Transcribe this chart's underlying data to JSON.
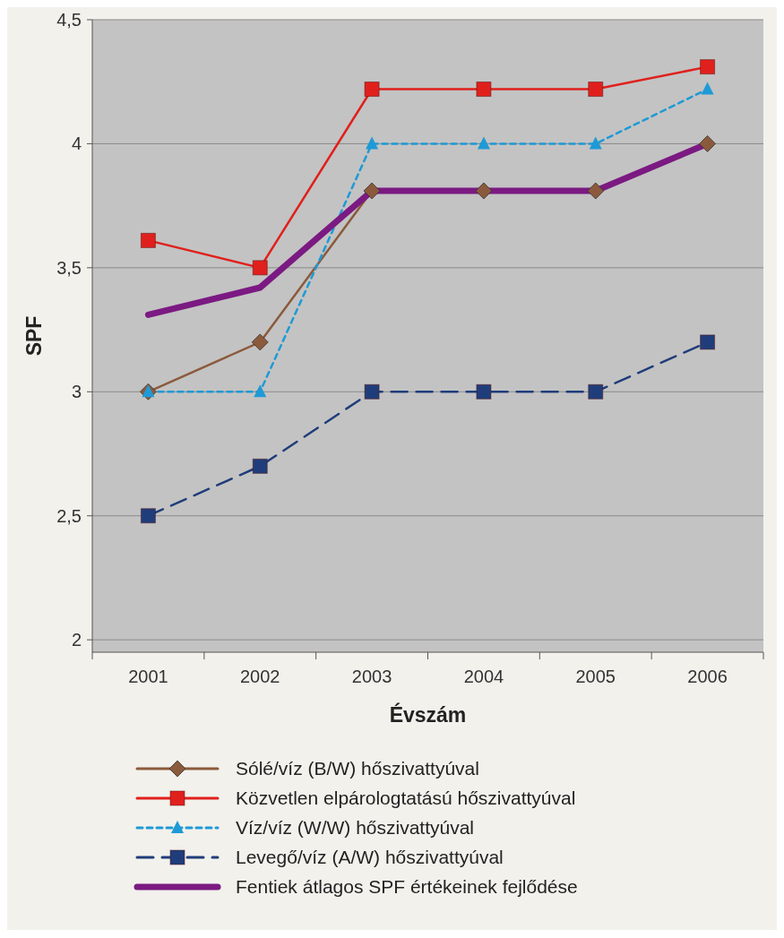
{
  "chart_data": {
    "type": "line",
    "xlabel": "Évszám",
    "ylabel": "SPF",
    "categories": [
      "2001",
      "2002",
      "2003",
      "2004",
      "2005",
      "2006"
    ],
    "ylim": [
      1.95,
      4.5
    ],
    "yticks": [
      {
        "value": 2,
        "label": "2"
      },
      {
        "value": 2.5,
        "label": "2,5"
      },
      {
        "value": 3,
        "label": "3"
      },
      {
        "value": 3.5,
        "label": "3,5"
      },
      {
        "value": 4,
        "label": "4"
      },
      {
        "value": 4.5,
        "label": "4,5"
      }
    ],
    "grid": "y",
    "legend": "bottom",
    "series": [
      {
        "name": "Sólé/víz (B/W) hőszivattyúval",
        "color": "#8b5a3c",
        "marker": "diamond",
        "line_style": "solid",
        "values": [
          3.0,
          3.2,
          3.81,
          3.81,
          3.81,
          4.0
        ]
      },
      {
        "name": "Közvetlen elpárologtatású hőszivattyúval",
        "color": "#e0201c",
        "marker": "square",
        "line_style": "solid",
        "values": [
          3.61,
          3.5,
          4.22,
          4.22,
          4.22,
          4.31
        ]
      },
      {
        "name": "Víz/víz (W/W) hőszivattyúval",
        "color": "#1e9ad6",
        "marker": "triangle",
        "line_style": "dotted",
        "values": [
          3.0,
          3.0,
          4.0,
          4.0,
          4.0,
          4.22
        ]
      },
      {
        "name": "Levegő/víz (A/W) hőszivattyúval",
        "color": "#1f3d7a",
        "marker": "square",
        "line_style": "dashed",
        "values": [
          2.5,
          2.7,
          3.0,
          3.0,
          3.0,
          3.2
        ]
      },
      {
        "name": "Fentiek átlagos SPF értékeinek fejlődése",
        "color": "#7b1a82",
        "marker": "none",
        "line_style": "solid",
        "values": [
          3.31,
          3.42,
          3.81,
          3.81,
          3.81,
          4.0
        ]
      }
    ]
  }
}
